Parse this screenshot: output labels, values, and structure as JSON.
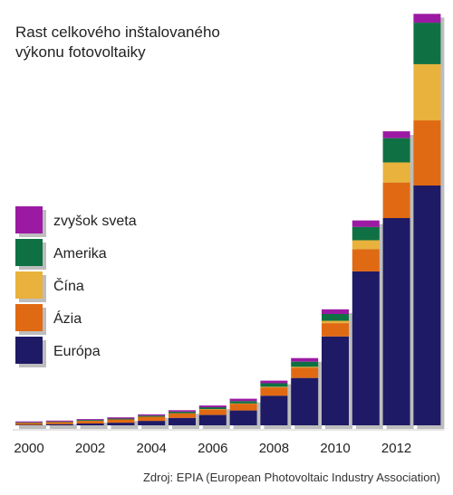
{
  "chart_data": {
    "type": "bar",
    "stacked": true,
    "title_lines": [
      "Rast celkového inštalovaného",
      "výkonu fotovoltaiky"
    ],
    "xlabel": "",
    "ylabel": "",
    "categories": [
      "2000",
      "2001",
      "2002",
      "2003",
      "2004",
      "2005",
      "2006",
      "2007",
      "2008",
      "2009",
      "2010",
      "2011",
      "2012",
      "2013"
    ],
    "tick_labels": [
      "2000",
      "2002",
      "2004",
      "2006",
      "2008",
      "2010",
      "2012"
    ],
    "ylim": [
      0,
      140
    ],
    "grid": false,
    "legend_position": "left",
    "series": [
      {
        "name": "Európa",
        "color": "#1f1a66",
        "values": [
          0.2,
          0.4,
          0.6,
          0.9,
          1.5,
          2.5,
          3.5,
          5.0,
          10.0,
          16.0,
          30.0,
          52.0,
          70.0,
          81.0
        ]
      },
      {
        "name": "Ázia",
        "color": "#e06a13",
        "values": [
          0.6,
          0.7,
          0.9,
          1.1,
          1.4,
          1.6,
          1.9,
          2.3,
          2.8,
          3.5,
          4.5,
          7.5,
          12.0,
          22.0
        ]
      },
      {
        "name": "Čína",
        "color": "#e8b23c",
        "values": [
          0.0,
          0.0,
          0.0,
          0.0,
          0.0,
          0.0,
          0.1,
          0.1,
          0.2,
          0.3,
          0.8,
          3.0,
          6.8,
          19.0
        ]
      },
      {
        "name": "Amerika",
        "color": "#0f7143",
        "values": [
          0.2,
          0.2,
          0.3,
          0.3,
          0.4,
          0.5,
          0.6,
          0.8,
          1.2,
          1.7,
          2.3,
          4.5,
          8.2,
          14.0
        ]
      },
      {
        "name": "zvyšok sveta",
        "color": "#9c1aa3",
        "values": [
          0.3,
          0.3,
          0.3,
          0.4,
          0.4,
          0.5,
          0.6,
          0.8,
          0.9,
          1.2,
          1.6,
          2.2,
          2.3,
          3.0
        ]
      }
    ],
    "legend_order": [
      "zvyšok sveta",
      "Amerika",
      "Čína",
      "Ázia",
      "Európa"
    ],
    "source": "Zdroj: EPIA (European Photovoltaic Industry Association)"
  }
}
